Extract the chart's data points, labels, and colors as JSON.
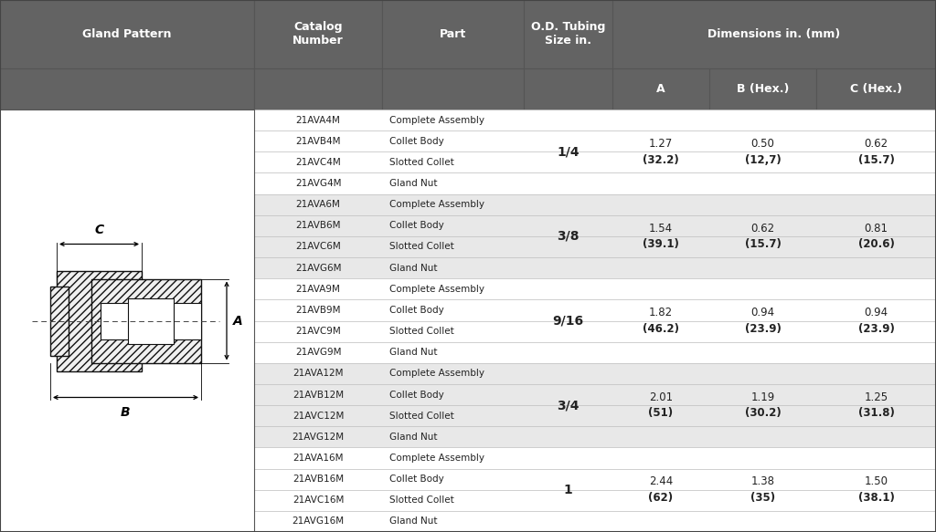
{
  "header_bg": "#636363",
  "header_text_color": "#ffffff",
  "row_bg_white": "#ffffff",
  "row_bg_gray": "#e8e8e8",
  "border_color": "#bbbbbb",
  "text_color": "#222222",
  "title": "Gland Pattern",
  "rows": [
    {
      "cat": "21AVA4M",
      "part": "Complete Assembly",
      "od": "1/4",
      "A1": "1.27",
      "A2": "(32.2)",
      "B1": "0.50",
      "B2": "(12,7)",
      "C1": "0.62",
      "C2": "(15.7)",
      "group": 0
    },
    {
      "cat": "21AVB4M",
      "part": "Collet Body",
      "od": "1/4",
      "A1": "1.27",
      "A2": "(32.2)",
      "B1": "0.50",
      "B2": "(12,7)",
      "C1": "0.62",
      "C2": "(15.7)",
      "group": 0
    },
    {
      "cat": "21AVC4M",
      "part": "Slotted Collet",
      "od": "1/4",
      "A1": "1.27",
      "A2": "(32.2)",
      "B1": "0.50",
      "B2": "(12,7)",
      "C1": "0.62",
      "C2": "(15.7)",
      "group": 0
    },
    {
      "cat": "21AVG4M",
      "part": "Gland Nut",
      "od": "1/4",
      "A1": "1.27",
      "A2": "(32.2)",
      "B1": "0.50",
      "B2": "(12,7)",
      "C1": "0.62",
      "C2": "(15.7)",
      "group": 0
    },
    {
      "cat": "21AVA6M",
      "part": "Complete Assembly",
      "od": "3/8",
      "A1": "1.54",
      "A2": "(39.1)",
      "B1": "0.62",
      "B2": "(15.7)",
      "C1": "0.81",
      "C2": "(20.6)",
      "group": 1
    },
    {
      "cat": "21AVB6M",
      "part": "Collet Body",
      "od": "3/8",
      "A1": "1.54",
      "A2": "(39.1)",
      "B1": "0.62",
      "B2": "(15.7)",
      "C1": "0.81",
      "C2": "(20.6)",
      "group": 1
    },
    {
      "cat": "21AVC6M",
      "part": "Slotted Collet",
      "od": "3/8",
      "A1": "1.54",
      "A2": "(39.1)",
      "B1": "0.62",
      "B2": "(15.7)",
      "C1": "0.81",
      "C2": "(20.6)",
      "group": 1
    },
    {
      "cat": "21AVG6M",
      "part": "Gland Nut",
      "od": "3/8",
      "A1": "1.54",
      "A2": "(39.1)",
      "B1": "0.62",
      "B2": "(15.7)",
      "C1": "0.81",
      "C2": "(20.6)",
      "group": 1
    },
    {
      "cat": "21AVA9M",
      "part": "Complete Assembly",
      "od": "9/16",
      "A1": "1.82",
      "A2": "(46.2)",
      "B1": "0.94",
      "B2": "(23.9)",
      "C1": "0.94",
      "C2": "(23.9)",
      "group": 0
    },
    {
      "cat": "21AVB9M",
      "part": "Collet Body",
      "od": "9/16",
      "A1": "1.82",
      "A2": "(46.2)",
      "B1": "0.94",
      "B2": "(23.9)",
      "C1": "0.94",
      "C2": "(23.9)",
      "group": 0
    },
    {
      "cat": "21AVC9M",
      "part": "Slotted Collet",
      "od": "9/16",
      "A1": "1.82",
      "A2": "(46.2)",
      "B1": "0.94",
      "B2": "(23.9)",
      "C1": "0.94",
      "C2": "(23.9)",
      "group": 0
    },
    {
      "cat": "21AVG9M",
      "part": "Gland Nut",
      "od": "9/16",
      "A1": "1.82",
      "A2": "(46.2)",
      "B1": "0.94",
      "B2": "(23.9)",
      "C1": "0.94",
      "C2": "(23.9)",
      "group": 0
    },
    {
      "cat": "21AVA12M",
      "part": "Complete Assembly",
      "od": "3/4",
      "A1": "2.01",
      "A2": "(51)",
      "B1": "1.19",
      "B2": "(30.2)",
      "C1": "1.25",
      "C2": "(31.8)",
      "group": 1
    },
    {
      "cat": "21AVB12M",
      "part": "Collet Body",
      "od": "3/4",
      "A1": "2.01",
      "A2": "(51)",
      "B1": "1.19",
      "B2": "(30.2)",
      "C1": "1.25",
      "C2": "(31.8)",
      "group": 1
    },
    {
      "cat": "21AVC12M",
      "part": "Slotted Collet",
      "od": "3/4",
      "A1": "2.01",
      "A2": "(51)",
      "B1": "1.19",
      "B2": "(30.2)",
      "C1": "1.25",
      "C2": "(31.8)",
      "group": 1
    },
    {
      "cat": "21AVG12M",
      "part": "Gland Nut",
      "od": "3/4",
      "A1": "2.01",
      "A2": "(51)",
      "B1": "1.19",
      "B2": "(30.2)",
      "C1": "1.25",
      "C2": "(31.8)",
      "group": 1
    },
    {
      "cat": "21AVA16M",
      "part": "Complete Assembly",
      "od": "1",
      "A1": "2.44",
      "A2": "(62)",
      "B1": "1.38",
      "B2": "(35)",
      "C1": "1.50",
      "C2": "(38.1)",
      "group": 0
    },
    {
      "cat": "21AVB16M",
      "part": "Collet Body",
      "od": "1",
      "A1": "2.44",
      "A2": "(62)",
      "B1": "1.38",
      "B2": "(35)",
      "C1": "1.50",
      "C2": "(38.1)",
      "group": 0
    },
    {
      "cat": "21AVC16M",
      "part": "Slotted Collet",
      "od": "1",
      "A1": "2.44",
      "A2": "(62)",
      "B1": "1.38",
      "B2": "(35)",
      "C1": "1.50",
      "C2": "(38.1)",
      "group": 0
    },
    {
      "cat": "21AVG16M",
      "part": "Gland Nut",
      "od": "1",
      "A1": "2.44",
      "A2": "(62)",
      "B1": "1.38",
      "B2": "(35)",
      "C1": "1.50",
      "C2": "(38.1)",
      "group": 0
    }
  ],
  "figsize": [
    10.24,
    5.83
  ],
  "dpi": 100
}
